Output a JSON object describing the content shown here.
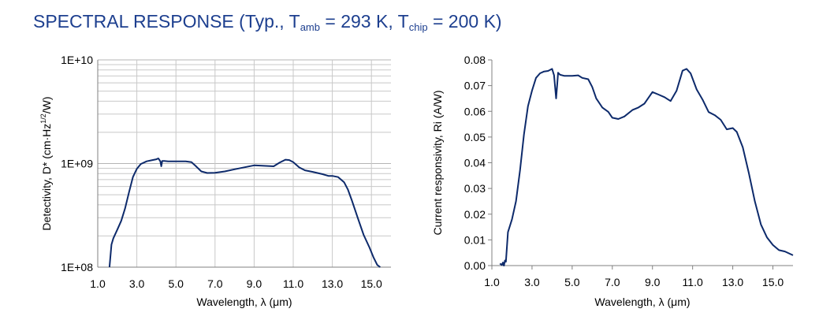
{
  "title": {
    "prefix": "SPECTRAL RESPONSE (Typ., T",
    "sub1": "amb",
    "mid": " = 293 K, T",
    "sub2": "chip",
    "suffix": " = 200 K)"
  },
  "colors": {
    "title": "#1d3f8f",
    "line": "#0d2a6b",
    "grid": "#c8c8c8",
    "axis": "#808080"
  },
  "chart_data": [
    {
      "type": "line",
      "title": "",
      "xlabel": "Wavelength, λ (μm)",
      "ylabel": "Detectivity, D* (cm·Hz",
      "ylabel_sup": "1/2",
      "ylabel_end": "/W)",
      "yscale": "log",
      "xlim": [
        1.0,
        16.0
      ],
      "ylim": [
        100000000,
        10000000000
      ],
      "grid": true,
      "legend": "none",
      "x_ticks": [
        "1.0",
        "3.0",
        "5.0",
        "7.0",
        "9.0",
        "11.0",
        "13.0",
        "15.0"
      ],
      "y_ticks": [
        "1E+08",
        "1E+09",
        "1E+10"
      ],
      "series": [
        {
          "x": [
            1.6,
            1.7,
            1.8,
            2.0,
            2.2,
            2.4,
            2.6,
            2.8,
            3.0,
            3.2,
            3.5,
            3.8,
            4.0,
            4.1,
            4.2,
            4.25,
            4.3,
            4.4,
            4.6,
            5.0,
            5.5,
            5.8,
            6.0,
            6.3,
            6.6,
            7.0,
            7.5,
            8.0,
            8.5,
            9.0,
            9.5,
            10.0,
            10.3,
            10.6,
            10.8,
            11.0,
            11.3,
            11.6,
            12.0,
            12.5,
            12.8,
            13.0,
            13.3,
            13.6,
            13.8,
            14.0,
            14.3,
            14.6,
            14.9,
            15.1,
            15.3,
            15.45
          ],
          "y": [
            100000000.0,
            165000000.0,
            190000000.0,
            230000000.0,
            280000000.0,
            370000000.0,
            530000000.0,
            740000000.0,
            890000000.0,
            990000000.0,
            1050000000.0,
            1080000000.0,
            1100000000.0,
            1120000000.0,
            1050000000.0,
            940000000.0,
            1060000000.0,
            1060000000.0,
            1050000000.0,
            1050000000.0,
            1050000000.0,
            1030000000.0,
            950000000.0,
            840000000.0,
            810000000.0,
            815000000.0,
            840000000.0,
            880000000.0,
            920000000.0,
            960000000.0,
            950000000.0,
            940000000.0,
            1020000000.0,
            1090000000.0,
            1080000000.0,
            1030000000.0,
            920000000.0,
            860000000.0,
            830000000.0,
            790000000.0,
            760000000.0,
            760000000.0,
            740000000.0,
            660000000.0,
            560000000.0,
            440000000.0,
            300000000.0,
            205000000.0,
            155000000.0,
            125000000.0,
            105000000.0,
            100000000.0
          ]
        }
      ]
    },
    {
      "type": "line",
      "title": "",
      "xlabel": "Wavelength, λ (μm)",
      "ylabel": "Current responsivity, Ri (A/W)",
      "yscale": "linear",
      "xlim": [
        1.0,
        16.0
      ],
      "ylim": [
        0.0,
        0.08
      ],
      "grid": false,
      "legend": "none",
      "x_ticks": [
        "1.0",
        "3.0",
        "5.0",
        "7.0",
        "9.0",
        "11.0",
        "13.0",
        "15.0"
      ],
      "y_ticks": [
        "0.00",
        "0.01",
        "0.02",
        "0.03",
        "0.04",
        "0.05",
        "0.06",
        "0.07",
        "0.08"
      ],
      "series": [
        {
          "x": [
            1.4,
            1.5,
            1.55,
            1.6,
            1.65,
            1.7,
            1.8,
            2.0,
            2.2,
            2.4,
            2.6,
            2.8,
            3.0,
            3.2,
            3.4,
            3.6,
            3.8,
            4.0,
            4.1,
            4.2,
            4.25,
            4.3,
            4.4,
            4.6,
            5.0,
            5.3,
            5.5,
            5.8,
            6.0,
            6.2,
            6.5,
            6.8,
            7.0,
            7.3,
            7.6,
            8.0,
            8.3,
            8.6,
            9.0,
            9.3,
            9.6,
            9.9,
            10.2,
            10.5,
            10.7,
            10.9,
            11.2,
            11.5,
            11.8,
            12.1,
            12.4,
            12.7,
            13.0,
            13.2,
            13.5,
            13.8,
            14.1,
            14.4,
            14.7,
            15.0,
            15.3,
            15.6,
            16.0
          ],
          "y": [
            0.0008,
            0.0002,
            0.0012,
            0.0,
            0.002,
            0.0015,
            0.013,
            0.018,
            0.025,
            0.037,
            0.051,
            0.062,
            0.068,
            0.073,
            0.0748,
            0.0755,
            0.0757,
            0.0765,
            0.074,
            0.065,
            0.07,
            0.075,
            0.0742,
            0.0738,
            0.0738,
            0.074,
            0.073,
            0.0725,
            0.0695,
            0.065,
            0.0615,
            0.0598,
            0.0575,
            0.057,
            0.058,
            0.0605,
            0.0615,
            0.063,
            0.0675,
            0.0665,
            0.0655,
            0.064,
            0.068,
            0.0758,
            0.0765,
            0.0748,
            0.0685,
            0.0645,
            0.0597,
            0.0585,
            0.0567,
            0.053,
            0.0535,
            0.052,
            0.046,
            0.036,
            0.025,
            0.016,
            0.011,
            0.008,
            0.006,
            0.0055,
            0.004
          ]
        }
      ]
    }
  ]
}
